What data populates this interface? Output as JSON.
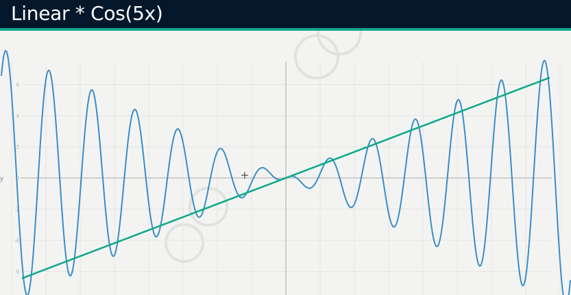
{
  "header": {
    "title": "Linear * Cos(5x)"
  },
  "colors": {
    "header_bg": "#05182b",
    "accent": "#13a98a",
    "background": "#f3f4f2",
    "curve": "#3a8cc6",
    "line": "#13a98a",
    "grid": "#e4e6e4",
    "axis": "#bfc1bf",
    "watermark": "#e0e2e0"
  },
  "icons": {
    "cursor": "crosshair-cursor-icon",
    "watermark": "circle-watermark-icon"
  },
  "chart_data": {
    "type": "line",
    "title": "",
    "xlabel": "",
    "ylabel": "y",
    "xlim": [
      -8.3,
      8.3
    ],
    "ylim": [
      -7.2,
      7.4
    ],
    "y_ticks": [
      -6,
      -4,
      -2,
      0,
      2,
      4,
      6
    ],
    "y_tick_labels": [
      "-6",
      "-4",
      "-2",
      "0",
      "2",
      "4",
      "6"
    ],
    "grid": true,
    "legend": "none",
    "series": [
      {
        "expression": "x * cos(5x)",
        "x_range": [
          -8.3,
          8.3
        ]
      },
      {
        "expression": "0.837x",
        "x_range": [
          -7.68,
          7.68
        ]
      }
    ]
  }
}
